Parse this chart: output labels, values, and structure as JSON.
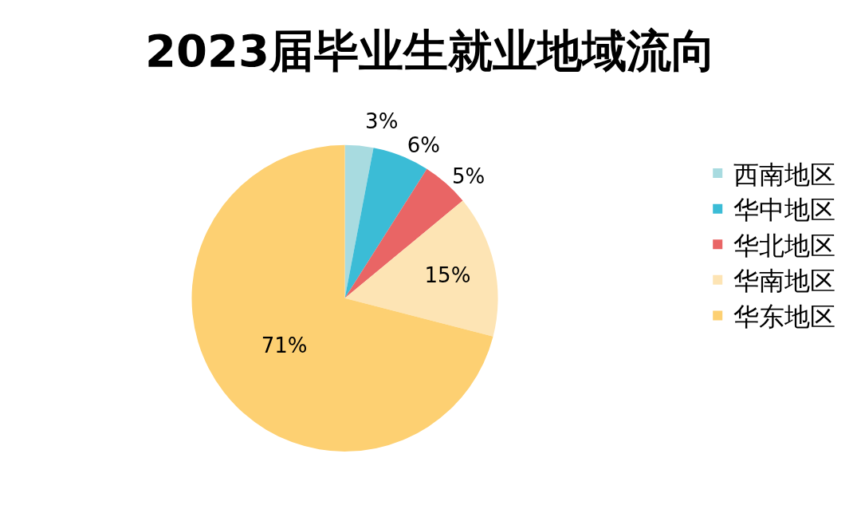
{
  "chart_data": {
    "type": "pie",
    "title": "2023届毕业生就业地域流向",
    "categories": [
      "西南地区",
      "华中地区",
      "华北地区",
      "华南地区",
      "华东地区"
    ],
    "values": [
      3,
      6,
      5,
      15,
      71
    ],
    "colors": [
      "#a8dbe0",
      "#3bbcd6",
      "#e96565",
      "#fde4b4",
      "#fdd072"
    ],
    "value_labels": [
      "3%",
      "6%",
      "5%",
      "15%",
      "71%"
    ],
    "legend": "right"
  }
}
